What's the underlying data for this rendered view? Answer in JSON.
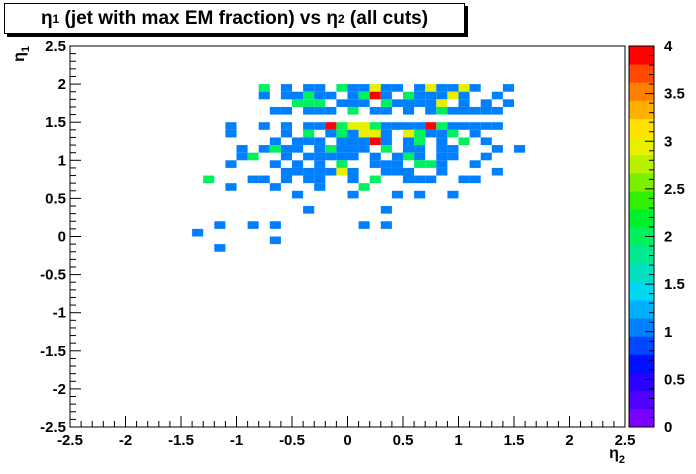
{
  "title": {
    "prefix": "η",
    "sub1": "1",
    "middle": " (jet with max EM fraction) vs η",
    "sub2": "2",
    "suffix": " (all cuts)"
  },
  "chart_data": {
    "type": "heatmap",
    "xlabel": "η2",
    "ylabel": "η1",
    "xlabel_parts": {
      "main": "η",
      "sub": "2"
    },
    "ylabel_parts": {
      "main": "η",
      "sub": "1"
    },
    "xlim": [
      -2.5,
      2.5
    ],
    "ylim": [
      -2.5,
      2.5
    ],
    "bin_width": 0.1,
    "x_ticks": [
      "-2.5",
      "-2",
      "-1.5",
      "-1",
      "-0.5",
      "0",
      "0.5",
      "1",
      "1.5",
      "2",
      "2.5"
    ],
    "y_ticks": [
      "-2.5",
      "-2",
      "-1.5",
      "-1",
      "-0.5",
      "0",
      "0.5",
      "1",
      "1.5",
      "2",
      "2.5"
    ],
    "z_range": [
      0,
      4
    ],
    "z_ticks": [
      "0",
      "0.5",
      "1",
      "1.5",
      "2",
      "2.5",
      "3",
      "3.5",
      "4"
    ],
    "palette": [
      "#7a00ff",
      "#5000ff",
      "#2a00ff",
      "#0010ff",
      "#0046ff",
      "#0080ff",
      "#00b0ff",
      "#00d8f0",
      "#00e0c0",
      "#00e890",
      "#00f060",
      "#00f030",
      "#30f000",
      "#7af000",
      "#b8f000",
      "#e8f000",
      "#ffe000",
      "#ffb000",
      "#ff8000",
      "#ff4800",
      "#ff0000"
    ],
    "cells": [
      {
        "x": -0.75,
        "y": 1.95,
        "z": 2
      },
      {
        "x": -0.55,
        "y": 1.95,
        "z": 1
      },
      {
        "x": -0.35,
        "y": 1.95,
        "z": 1
      },
      {
        "x": -0.25,
        "y": 1.95,
        "z": 1
      },
      {
        "x": -0.05,
        "y": 1.95,
        "z": 2
      },
      {
        "x": 0.05,
        "y": 1.95,
        "z": 1
      },
      {
        "x": 0.15,
        "y": 1.95,
        "z": 1
      },
      {
        "x": 0.25,
        "y": 1.95,
        "z": 3
      },
      {
        "x": 0.35,
        "y": 1.95,
        "z": 1
      },
      {
        "x": 0.45,
        "y": 1.95,
        "z": 1
      },
      {
        "x": 0.65,
        "y": 1.95,
        "z": 1
      },
      {
        "x": 0.75,
        "y": 1.95,
        "z": 3
      },
      {
        "x": 0.85,
        "y": 1.95,
        "z": 1
      },
      {
        "x": 0.95,
        "y": 1.95,
        "z": 1
      },
      {
        "x": 1.05,
        "y": 1.95,
        "z": 3
      },
      {
        "x": 1.15,
        "y": 1.95,
        "z": 1
      },
      {
        "x": 1.45,
        "y": 1.95,
        "z": 1
      },
      {
        "x": -0.75,
        "y": 1.85,
        "z": 1
      },
      {
        "x": -0.55,
        "y": 1.85,
        "z": 1
      },
      {
        "x": -0.45,
        "y": 1.85,
        "z": 1
      },
      {
        "x": -0.35,
        "y": 1.85,
        "z": 2
      },
      {
        "x": -0.25,
        "y": 1.85,
        "z": 1
      },
      {
        "x": -0.15,
        "y": 1.85,
        "z": 1
      },
      {
        "x": 0.05,
        "y": 1.85,
        "z": 1
      },
      {
        "x": 0.15,
        "y": 1.85,
        "z": 2
      },
      {
        "x": 0.25,
        "y": 1.85,
        "z": 4
      },
      {
        "x": 0.35,
        "y": 1.85,
        "z": 1
      },
      {
        "x": 0.55,
        "y": 1.85,
        "z": 2
      },
      {
        "x": 0.65,
        "y": 1.85,
        "z": 1
      },
      {
        "x": 0.75,
        "y": 1.85,
        "z": 1
      },
      {
        "x": 0.85,
        "y": 1.85,
        "z": 1
      },
      {
        "x": 0.95,
        "y": 1.85,
        "z": 3
      },
      {
        "x": 1.05,
        "y": 1.85,
        "z": 1
      },
      {
        "x": 1.35,
        "y": 1.85,
        "z": 1
      },
      {
        "x": -0.45,
        "y": 1.75,
        "z": 2
      },
      {
        "x": -0.35,
        "y": 1.75,
        "z": 2
      },
      {
        "x": -0.25,
        "y": 1.75,
        "z": 2
      },
      {
        "x": -0.05,
        "y": 1.75,
        "z": 1
      },
      {
        "x": 0.05,
        "y": 1.75,
        "z": 1
      },
      {
        "x": 0.15,
        "y": 1.75,
        "z": 1
      },
      {
        "x": 0.35,
        "y": 1.75,
        "z": 2
      },
      {
        "x": 0.45,
        "y": 1.75,
        "z": 1
      },
      {
        "x": 0.55,
        "y": 1.75,
        "z": 1
      },
      {
        "x": 0.65,
        "y": 1.75,
        "z": 1
      },
      {
        "x": 0.75,
        "y": 1.75,
        "z": 1
      },
      {
        "x": 0.85,
        "y": 1.75,
        "z": 3
      },
      {
        "x": 1.05,
        "y": 1.75,
        "z": 1
      },
      {
        "x": 1.25,
        "y": 1.75,
        "z": 1
      },
      {
        "x": 1.45,
        "y": 1.75,
        "z": 1
      },
      {
        "x": -0.65,
        "y": 1.65,
        "z": 1
      },
      {
        "x": -0.55,
        "y": 1.65,
        "z": 1
      },
      {
        "x": -0.35,
        "y": 1.65,
        "z": 1
      },
      {
        "x": -0.25,
        "y": 1.65,
        "z": 1
      },
      {
        "x": -0.15,
        "y": 1.65,
        "z": 1
      },
      {
        "x": 0.05,
        "y": 1.65,
        "z": 2
      },
      {
        "x": 0.25,
        "y": 1.65,
        "z": 1
      },
      {
        "x": 0.35,
        "y": 1.65,
        "z": 1
      },
      {
        "x": 0.55,
        "y": 1.65,
        "z": 1
      },
      {
        "x": 0.75,
        "y": 1.65,
        "z": 1
      },
      {
        "x": 0.85,
        "y": 1.65,
        "z": 2
      },
      {
        "x": 0.95,
        "y": 1.65,
        "z": 1
      },
      {
        "x": 1.05,
        "y": 1.65,
        "z": 1
      },
      {
        "x": 1.15,
        "y": 1.65,
        "z": 1
      },
      {
        "x": 1.25,
        "y": 1.65,
        "z": 1
      },
      {
        "x": 1.35,
        "y": 1.65,
        "z": 1
      },
      {
        "x": -1.05,
        "y": 1.45,
        "z": 1
      },
      {
        "x": -0.75,
        "y": 1.45,
        "z": 1
      },
      {
        "x": -0.55,
        "y": 1.45,
        "z": 1
      },
      {
        "x": -0.35,
        "y": 1.45,
        "z": 1
      },
      {
        "x": -0.25,
        "y": 1.45,
        "z": 1
      },
      {
        "x": -0.15,
        "y": 1.45,
        "z": 4
      },
      {
        "x": -0.05,
        "y": 1.45,
        "z": 2
      },
      {
        "x": 0.05,
        "y": 1.45,
        "z": 3
      },
      {
        "x": 0.15,
        "y": 1.45,
        "z": 3
      },
      {
        "x": 0.25,
        "y": 1.45,
        "z": 2
      },
      {
        "x": 0.35,
        "y": 1.45,
        "z": 1
      },
      {
        "x": 0.45,
        "y": 1.45,
        "z": 1
      },
      {
        "x": 0.55,
        "y": 1.45,
        "z": 1
      },
      {
        "x": 0.65,
        "y": 1.45,
        "z": 1
      },
      {
        "x": 0.75,
        "y": 1.45,
        "z": 4
      },
      {
        "x": 0.85,
        "y": 1.45,
        "z": 2
      },
      {
        "x": 0.95,
        "y": 1.45,
        "z": 1
      },
      {
        "x": 1.05,
        "y": 1.45,
        "z": 1
      },
      {
        "x": 1.15,
        "y": 1.45,
        "z": 1
      },
      {
        "x": 1.25,
        "y": 1.45,
        "z": 1
      },
      {
        "x": 1.35,
        "y": 1.45,
        "z": 1
      },
      {
        "x": -1.05,
        "y": 1.35,
        "z": 1
      },
      {
        "x": -0.55,
        "y": 1.35,
        "z": 1
      },
      {
        "x": -0.35,
        "y": 1.35,
        "z": 2
      },
      {
        "x": -0.15,
        "y": 1.35,
        "z": 1
      },
      {
        "x": -0.05,
        "y": 1.35,
        "z": 2
      },
      {
        "x": 0.05,
        "y": 1.35,
        "z": 1
      },
      {
        "x": 0.15,
        "y": 1.35,
        "z": 3
      },
      {
        "x": 0.25,
        "y": 1.35,
        "z": 3
      },
      {
        "x": 0.35,
        "y": 1.35,
        "z": 1
      },
      {
        "x": 0.55,
        "y": 1.35,
        "z": 3
      },
      {
        "x": 0.65,
        "y": 1.35,
        "z": 2
      },
      {
        "x": 0.75,
        "y": 1.35,
        "z": 1
      },
      {
        "x": 0.85,
        "y": 1.35,
        "z": 1
      },
      {
        "x": 0.95,
        "y": 1.35,
        "z": 2
      },
      {
        "x": 1.15,
        "y": 1.35,
        "z": 1
      },
      {
        "x": -0.65,
        "y": 1.25,
        "z": 1
      },
      {
        "x": -0.45,
        "y": 1.25,
        "z": 1
      },
      {
        "x": -0.35,
        "y": 1.25,
        "z": 1
      },
      {
        "x": -0.25,
        "y": 1.25,
        "z": 1
      },
      {
        "x": -0.05,
        "y": 1.25,
        "z": 1
      },
      {
        "x": 0.05,
        "y": 1.25,
        "z": 1
      },
      {
        "x": 0.15,
        "y": 1.25,
        "z": 1
      },
      {
        "x": 0.25,
        "y": 1.25,
        "z": 4
      },
      {
        "x": 0.35,
        "y": 1.25,
        "z": 1
      },
      {
        "x": 0.55,
        "y": 1.25,
        "z": 1
      },
      {
        "x": 0.65,
        "y": 1.25,
        "z": 2
      },
      {
        "x": 0.85,
        "y": 1.25,
        "z": 1
      },
      {
        "x": 1.05,
        "y": 1.25,
        "z": 2
      },
      {
        "x": 1.25,
        "y": 1.25,
        "z": 1
      },
      {
        "x": -0.95,
        "y": 1.15,
        "z": 1
      },
      {
        "x": -0.75,
        "y": 1.15,
        "z": 1
      },
      {
        "x": -0.65,
        "y": 1.15,
        "z": 2
      },
      {
        "x": -0.55,
        "y": 1.15,
        "z": 1
      },
      {
        "x": -0.45,
        "y": 1.15,
        "z": 1
      },
      {
        "x": -0.25,
        "y": 1.15,
        "z": 1
      },
      {
        "x": -0.15,
        "y": 1.15,
        "z": 2
      },
      {
        "x": -0.05,
        "y": 1.15,
        "z": 1
      },
      {
        "x": 0.05,
        "y": 1.15,
        "z": 1
      },
      {
        "x": 0.15,
        "y": 1.15,
        "z": 1
      },
      {
        "x": 0.35,
        "y": 1.15,
        "z": 2
      },
      {
        "x": 0.55,
        "y": 1.15,
        "z": 1
      },
      {
        "x": 0.65,
        "y": 1.15,
        "z": 1
      },
      {
        "x": 0.85,
        "y": 1.15,
        "z": 1
      },
      {
        "x": 0.95,
        "y": 1.15,
        "z": 1
      },
      {
        "x": 1.35,
        "y": 1.15,
        "z": 1
      },
      {
        "x": 1.55,
        "y": 1.15,
        "z": 1
      },
      {
        "x": -0.95,
        "y": 1.05,
        "z": 1
      },
      {
        "x": -0.85,
        "y": 1.05,
        "z": 2
      },
      {
        "x": -0.55,
        "y": 1.05,
        "z": 1
      },
      {
        "x": -0.35,
        "y": 1.05,
        "z": 1
      },
      {
        "x": -0.25,
        "y": 1.05,
        "z": 1
      },
      {
        "x": -0.15,
        "y": 1.05,
        "z": 1
      },
      {
        "x": -0.05,
        "y": 1.05,
        "z": 1
      },
      {
        "x": 0.05,
        "y": 1.05,
        "z": 1
      },
      {
        "x": 0.25,
        "y": 1.05,
        "z": 1
      },
      {
        "x": 0.45,
        "y": 1.05,
        "z": 1
      },
      {
        "x": 0.55,
        "y": 1.05,
        "z": 2
      },
      {
        "x": 0.65,
        "y": 1.05,
        "z": 1
      },
      {
        "x": 0.85,
        "y": 1.05,
        "z": 1
      },
      {
        "x": 0.95,
        "y": 1.05,
        "z": 1
      },
      {
        "x": 1.25,
        "y": 1.05,
        "z": 1
      },
      {
        "x": -1.05,
        "y": 0.95,
        "z": 1
      },
      {
        "x": -0.65,
        "y": 0.95,
        "z": 1
      },
      {
        "x": -0.45,
        "y": 0.95,
        "z": 1
      },
      {
        "x": -0.25,
        "y": 0.95,
        "z": 1
      },
      {
        "x": -0.05,
        "y": 0.95,
        "z": 2
      },
      {
        "x": 0.25,
        "y": 0.95,
        "z": 1
      },
      {
        "x": 0.35,
        "y": 0.95,
        "z": 1
      },
      {
        "x": 0.45,
        "y": 0.95,
        "z": 1
      },
      {
        "x": 0.65,
        "y": 0.95,
        "z": 2
      },
      {
        "x": 0.75,
        "y": 0.95,
        "z": 2
      },
      {
        "x": 0.85,
        "y": 0.95,
        "z": 1
      },
      {
        "x": 1.15,
        "y": 0.95,
        "z": 1
      },
      {
        "x": -0.55,
        "y": 0.85,
        "z": 1
      },
      {
        "x": -0.45,
        "y": 0.85,
        "z": 1
      },
      {
        "x": -0.35,
        "y": 0.85,
        "z": 1
      },
      {
        "x": -0.25,
        "y": 0.85,
        "z": 1
      },
      {
        "x": -0.15,
        "y": 0.85,
        "z": 1
      },
      {
        "x": -0.05,
        "y": 0.85,
        "z": 3
      },
      {
        "x": 0.05,
        "y": 0.85,
        "z": 1
      },
      {
        "x": 0.35,
        "y": 0.85,
        "z": 1
      },
      {
        "x": 0.45,
        "y": 0.85,
        "z": 1
      },
      {
        "x": 0.55,
        "y": 0.85,
        "z": 1
      },
      {
        "x": 0.85,
        "y": 0.85,
        "z": 1
      },
      {
        "x": 1.35,
        "y": 0.85,
        "z": 1
      },
      {
        "x": -1.25,
        "y": 0.75,
        "z": 2
      },
      {
        "x": -0.85,
        "y": 0.75,
        "z": 1
      },
      {
        "x": -0.75,
        "y": 0.75,
        "z": 1
      },
      {
        "x": -0.55,
        "y": 0.75,
        "z": 1
      },
      {
        "x": -0.35,
        "y": 0.75,
        "z": 1
      },
      {
        "x": -0.25,
        "y": 0.75,
        "z": 1
      },
      {
        "x": 0.05,
        "y": 0.75,
        "z": 1
      },
      {
        "x": 0.25,
        "y": 0.75,
        "z": 2
      },
      {
        "x": 0.55,
        "y": 0.75,
        "z": 1
      },
      {
        "x": 0.65,
        "y": 0.75,
        "z": 1
      },
      {
        "x": 0.75,
        "y": 0.75,
        "z": 1
      },
      {
        "x": 1.05,
        "y": 0.75,
        "z": 1
      },
      {
        "x": 1.15,
        "y": 0.75,
        "z": 1
      },
      {
        "x": -1.05,
        "y": 0.65,
        "z": 1
      },
      {
        "x": -0.65,
        "y": 0.65,
        "z": 1
      },
      {
        "x": -0.25,
        "y": 0.65,
        "z": 1
      },
      {
        "x": 0.15,
        "y": 0.65,
        "z": 2
      },
      {
        "x": -0.45,
        "y": 0.55,
        "z": 1
      },
      {
        "x": 0.05,
        "y": 0.55,
        "z": 1
      },
      {
        "x": 0.45,
        "y": 0.55,
        "z": 1
      },
      {
        "x": 0.65,
        "y": 0.55,
        "z": 1
      },
      {
        "x": 0.95,
        "y": 0.55,
        "z": 1
      },
      {
        "x": -0.35,
        "y": 0.35,
        "z": 1
      },
      {
        "x": 0.35,
        "y": 0.35,
        "z": 1
      },
      {
        "x": -1.15,
        "y": 0.15,
        "z": 1
      },
      {
        "x": -0.85,
        "y": 0.15,
        "z": 1
      },
      {
        "x": -0.65,
        "y": 0.15,
        "z": 1
      },
      {
        "x": 0.15,
        "y": 0.15,
        "z": 1
      },
      {
        "x": 0.35,
        "y": 0.15,
        "z": 1
      },
      {
        "x": -1.35,
        "y": 0.05,
        "z": 1
      },
      {
        "x": -0.65,
        "y": -0.05,
        "z": 1
      },
      {
        "x": -1.15,
        "y": -0.15,
        "z": 1
      }
    ]
  }
}
